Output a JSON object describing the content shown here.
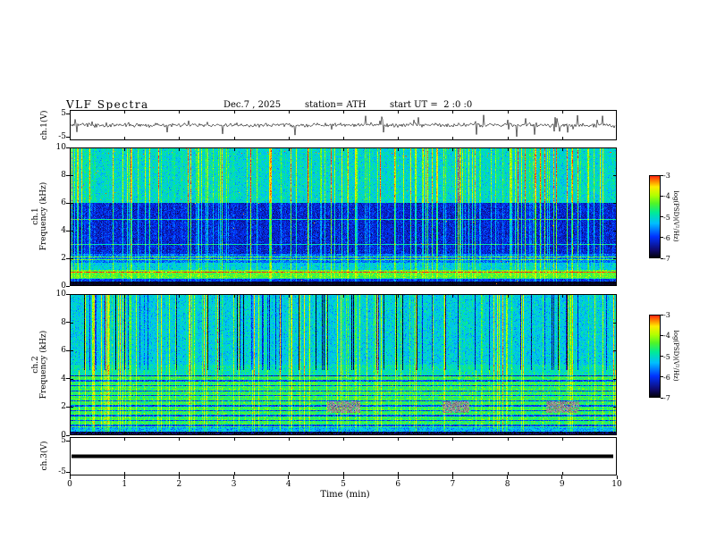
{
  "header": {
    "title": "VLF Spectra",
    "date": "Dec.7 , 2025",
    "station": "station= ATH",
    "start_ut": "start UT =  2 :0 :0"
  },
  "axes": {
    "time_label": "Time (min)",
    "time_ticks": [
      "0",
      "1",
      "2",
      "3",
      "4",
      "5",
      "6",
      "7",
      "8",
      "9",
      "10"
    ],
    "freq_ticks": [
      "10",
      "8",
      "6",
      "4",
      "2",
      "0"
    ],
    "volt_ticks": [
      "5",
      "-5"
    ]
  },
  "panels": {
    "ch1_wave": {
      "ylabel": "ch.1(V)",
      "ymax": "5",
      "ymin": "-5"
    },
    "ch1_spec": {
      "ylabel_ch": "ch.1",
      "ylabel_freq": "Frequency (kHz)"
    },
    "ch2_spec": {
      "ylabel_ch": "ch.2",
      "ylabel_freq": "Frequency (kHz)"
    },
    "ch3_wave": {
      "ylabel": "ch.3(V)",
      "ymax": "5",
      "ymin": "-5"
    }
  },
  "colorbars": {
    "label": "log(PSD)(V²/Hz)",
    "ticks": [
      "-3",
      "-4",
      "-5",
      "-6",
      "-7"
    ]
  },
  "chart_data": [
    {
      "type": "line",
      "name": "ch1_voltage_trace",
      "ylabel": "ch.1(V)",
      "xrange": [
        0,
        10
      ],
      "yrange": [
        -5,
        5
      ],
      "summary": "Broadband VLF receiver time series: continuous noise band of roughly ±1 V about 0 V with frequent impulsive sferic spikes reaching about ±4 V over the full 10 minutes."
    },
    {
      "type": "heatmap",
      "name": "ch1_spectrogram",
      "xlabel": "Time (min)",
      "ylabel": "ch.1 Frequency (kHz)",
      "xrange": [
        0,
        10
      ],
      "yrange": [
        0,
        10
      ],
      "zlabel": "log(PSD)(V²/Hz)",
      "zrange": [
        -7,
        -3
      ],
      "bands": [
        {
          "f": [
            0,
            0.35
          ],
          "psd": -6.9
        },
        {
          "f": [
            0.35,
            0.6
          ],
          "psd": -6.0
        },
        {
          "f": [
            0.6,
            1.15
          ],
          "psd": -4.4
        },
        {
          "f": [
            1.15,
            1.7
          ],
          "psd": -5.2
        },
        {
          "f": [
            1.7,
            2.35
          ],
          "psd": -5.7
        },
        {
          "f": [
            2.35,
            6.0
          ],
          "psd": -6.2
        },
        {
          "f": [
            6.0,
            10.0
          ],
          "psd": -5.1
        }
      ],
      "line_features_khz": [
        0.55,
        1.0,
        1.9,
        2.1,
        3.0,
        4.8
      ],
      "vertical_streaks": "dense lightning sferic streaks spanning 0-10 kHz at roughly -4.5 log PSD",
      "hot_spots": "sparse red pixels near -3 log PSD, mostly above 9 kHz"
    },
    {
      "type": "heatmap",
      "name": "ch2_spectrogram",
      "xlabel": "Time (min)",
      "ylabel": "ch.2 Frequency (kHz)",
      "xrange": [
        0,
        10
      ],
      "yrange": [
        0,
        10
      ],
      "zlabel": "log(PSD)(V²/Hz)",
      "zrange": [
        -7,
        -3
      ],
      "bands": [
        {
          "f": [
            0,
            0.25
          ],
          "psd": -6.8
        },
        {
          "f": [
            0.25,
            0.55
          ],
          "psd": -5.4
        },
        {
          "f": [
            0.55,
            4.2
          ],
          "psd": -4.6
        },
        {
          "f": [
            4.2,
            5.0
          ],
          "psd": -5.0
        },
        {
          "f": [
            5.0,
            10.0
          ],
          "psd": -5.2
        }
      ],
      "line_features_khz": [
        0.7,
        1.05,
        1.4,
        1.75,
        2.1,
        2.45,
        2.8,
        3.15,
        3.5,
        3.85,
        4.2
      ],
      "dark_streaks": "blue vertical dropouts above ~5 kHz",
      "gray_patches": [
        {
          "t_min": [
            4.7,
            5.3
          ],
          "f_khz": [
            1.6,
            2.4
          ]
        },
        {
          "t_min": [
            6.8,
            7.3
          ],
          "f_khz": [
            1.6,
            2.4
          ]
        },
        {
          "t_min": [
            8.7,
            9.3
          ],
          "f_khz": [
            1.6,
            2.4
          ]
        }
      ]
    },
    {
      "type": "line",
      "name": "ch3_voltage_trace",
      "ylabel": "ch.3(V)",
      "xrange": [
        0,
        10
      ],
      "yrange": [
        -5,
        5
      ],
      "summary": "Flat thick trace at 0 V for the full 10 minutes (channel inactive)."
    }
  ]
}
